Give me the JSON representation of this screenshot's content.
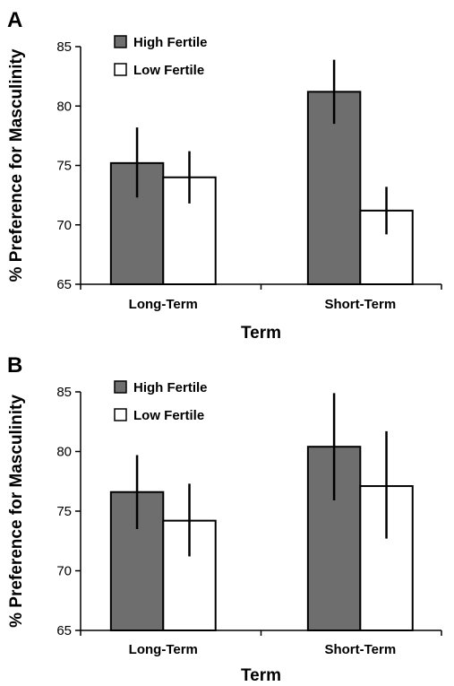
{
  "chart_data": [
    {
      "panel_label": "A",
      "type": "bar",
      "categories": [
        "Long-Term",
        "Short-Term"
      ],
      "series": [
        {
          "name": "High Fertile",
          "values": [
            75.2,
            81.2
          ],
          "error_low": [
            72.3,
            78.5
          ],
          "error_high": [
            78.2,
            83.9
          ],
          "color": "#6e6e6e"
        },
        {
          "name": "Low Fertile",
          "values": [
            74.0,
            71.2
          ],
          "error_low": [
            71.8,
            69.2
          ],
          "error_high": [
            76.2,
            73.2
          ],
          "color": "#ffffff"
        }
      ],
      "xlabel": "Term",
      "ylabel": "% Preference for Masculinity",
      "ylim": [
        65,
        85
      ],
      "yticks": [
        "65",
        "70",
        "75",
        "80",
        "85"
      ],
      "legend_position": "top-left",
      "grid": false
    },
    {
      "panel_label": "B",
      "type": "bar",
      "categories": [
        "Long-Term",
        "Short-Term"
      ],
      "series": [
        {
          "name": "High Fertile",
          "values": [
            76.6,
            80.4
          ],
          "error_low": [
            73.5,
            75.9
          ],
          "error_high": [
            79.7,
            84.9
          ],
          "color": "#6e6e6e"
        },
        {
          "name": "Low Fertile",
          "values": [
            74.2,
            77.1
          ],
          "error_low": [
            71.2,
            72.7
          ],
          "error_high": [
            77.3,
            81.7
          ],
          "color": "#ffffff"
        }
      ],
      "xlabel": "Term",
      "ylabel": "% Preference for Masculinity",
      "ylim": [
        65,
        85
      ],
      "yticks": [
        "65",
        "70",
        "75",
        "80",
        "85"
      ],
      "legend_position": "top-left",
      "grid": false
    }
  ]
}
